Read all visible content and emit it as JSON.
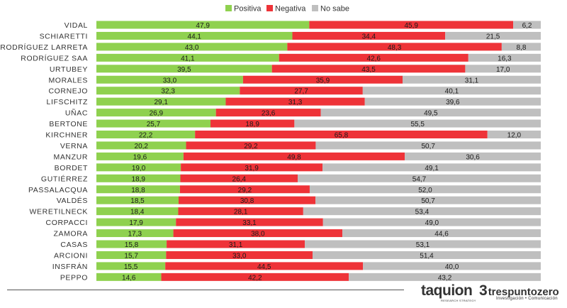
{
  "chart_data": {
    "type": "bar",
    "stacked": true,
    "orientation": "horizontal",
    "normalized_percent": true,
    "legend_position": "top",
    "categories": [
      "VIDAL",
      "SCHIARETTI",
      "RODRÍGUEZ LARRETA",
      "RODRÍGUEZ SAA",
      "URTUBEY",
      "MORALES",
      "CORNEJO",
      "LIFSCHITZ",
      "UÑAC",
      "BERTONE",
      "KIRCHNER",
      "VERNA",
      "MANZUR",
      "BORDET",
      "GUTIÉRREZ",
      "PASSALACQUA",
      "VALDÉS",
      "WERETILNECK",
      "CORPACCI",
      "ZAMORA",
      "CASAS",
      "ARCIONI",
      "INSFRÁN",
      "PEPPO"
    ],
    "series": [
      {
        "name": "Positiva",
        "color": "#8fd14f",
        "values": [
          47.9,
          44.1,
          43.0,
          41.1,
          39.5,
          33.0,
          32.3,
          29.1,
          26.9,
          25.7,
          22.2,
          20.2,
          19.6,
          19.0,
          18.9,
          18.8,
          18.5,
          18.4,
          17.9,
          17.3,
          15.8,
          15.7,
          15.5,
          14.6
        ],
        "labels": [
          "47,9",
          "44,1",
          "43,0",
          "41,1",
          "39,5",
          "33,0",
          "32,3",
          "29,1",
          "26,9",
          "25,7",
          "22,2",
          "20,2",
          "19,6",
          "19,0",
          "18,9",
          "18,8",
          "18,5",
          "18,4",
          "17,9",
          "17,3",
          "15,8",
          "15,7",
          "15,5",
          "14,6"
        ]
      },
      {
        "name": "Negativa",
        "color": "#ee3338",
        "values": [
          45.9,
          34.4,
          48.3,
          42.6,
          43.5,
          35.9,
          27.7,
          31.3,
          23.6,
          18.9,
          65.8,
          29.2,
          49.8,
          31.9,
          26.4,
          29.2,
          30.8,
          28.1,
          33.1,
          38.0,
          31.1,
          33.0,
          44.5,
          42.2
        ],
        "labels": [
          "45,9",
          "34,4",
          "48,3",
          "42,6",
          "43,5",
          "35,9",
          "27,7",
          "31,3",
          "23,6",
          "18,9",
          "65,8",
          "29,2",
          "49,8",
          "31,9",
          "26,4",
          "29,2",
          "30,8",
          "28,1",
          "33,1",
          "38,0",
          "31,1",
          "33,0",
          "44,5",
          "42,2"
        ]
      },
      {
        "name": "No sabe",
        "color": "#bfbfbf",
        "values": [
          6.2,
          21.5,
          8.8,
          16.3,
          17.0,
          31.1,
          40.1,
          39.6,
          49.5,
          55.5,
          12.0,
          50.7,
          30.6,
          49.1,
          54.7,
          52.0,
          50.7,
          53.4,
          49.0,
          44.6,
          53.1,
          51.4,
          40.0,
          43.2
        ],
        "labels": [
          "6,2",
          "21,5",
          "8,8",
          "16,3",
          "17,0",
          "31,1",
          "40,1",
          "39,6",
          "49,5",
          "55,5",
          "12,0",
          "50,7",
          "30,6",
          "49,1",
          "54,7",
          "52,0",
          "50,7",
          "53,4",
          "49,0",
          "44,6",
          "53,1",
          "51,4",
          "40,0",
          "43,2"
        ]
      }
    ]
  },
  "branding": {
    "taquion_name": "taquion",
    "taquion_tagline": "RESEARCH STRATEGY",
    "tres_mark": "3",
    "tres_name": "trespuntozero",
    "tres_tagline": "Investigación • Comunicación"
  }
}
